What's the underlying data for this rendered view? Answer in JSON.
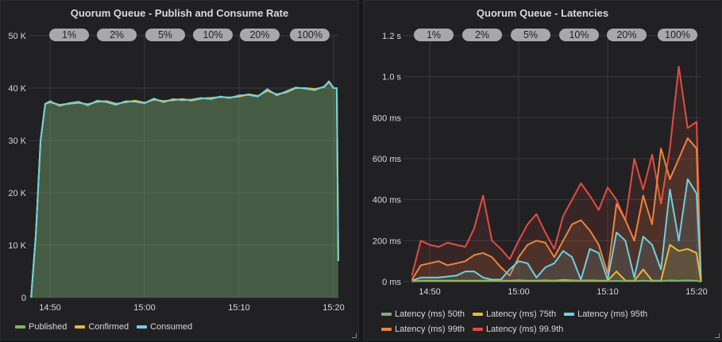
{
  "chart_data": [
    {
      "type": "area",
      "title": "Quorum Queue - Publish and Consume Rate",
      "y_ticks": [
        "0",
        "10 K",
        "20 K",
        "30 K",
        "40 K",
        "50 K"
      ],
      "ylim": [
        0,
        50000
      ],
      "x_ticks": [
        "14:50",
        "15:00",
        "15:10",
        "15:20"
      ],
      "xlim": [
        "14:48:00",
        "15:20:40"
      ],
      "grid": true,
      "legend_placement": "bottom",
      "annotations": [
        "1%",
        "2%",
        "5%",
        "10%",
        "20%",
        "100%"
      ],
      "x": [
        "14:48:00",
        "14:48:30",
        "14:49:00",
        "14:49:30",
        "14:50:00",
        "14:51:00",
        "14:52:00",
        "14:53:00",
        "14:54:00",
        "14:55:00",
        "14:56:00",
        "14:57:00",
        "14:58:00",
        "14:59:00",
        "15:00:00",
        "15:01:00",
        "15:02:00",
        "15:03:00",
        "15:04:00",
        "15:05:00",
        "15:06:00",
        "15:07:00",
        "15:08:00",
        "15:09:00",
        "15:10:00",
        "15:11:00",
        "15:12:00",
        "15:13:00",
        "15:14:00",
        "15:15:00",
        "15:16:00",
        "15:17:00",
        "15:18:00",
        "15:19:00",
        "15:19:30",
        "15:20:00",
        "15:20:20",
        "15:20:30"
      ],
      "series": [
        {
          "name": "Published",
          "color": "#7eb26d",
          "values": [
            0,
            12000,
            30000,
            37000,
            37300,
            36800,
            37000,
            37200,
            36900,
            37400,
            37500,
            37000,
            37300,
            37600,
            37200,
            37800,
            37500,
            37700,
            37900,
            37600,
            38000,
            38100,
            38300,
            38200,
            38400,
            38800,
            38500,
            39500,
            38800,
            39200,
            40000,
            40000,
            39800,
            40200,
            41200,
            40000,
            40000,
            7000
          ]
        },
        {
          "name": "Confirmed",
          "color": "#eab839",
          "values": [
            0,
            12000,
            30000,
            37000,
            37300,
            36800,
            37000,
            37200,
            36900,
            37400,
            37500,
            37000,
            37300,
            37600,
            37200,
            37800,
            37500,
            37700,
            37900,
            37600,
            38000,
            38100,
            38300,
            38200,
            38400,
            38800,
            38500,
            39500,
            38800,
            39200,
            40000,
            40000,
            39800,
            40200,
            41200,
            40000,
            40000,
            7000
          ]
        },
        {
          "name": "Consumed",
          "color": "#6ed0e0",
          "values": [
            0,
            12000,
            30000,
            37000,
            37500,
            36600,
            37100,
            37400,
            36700,
            37600,
            37300,
            36800,
            37500,
            37400,
            37100,
            38000,
            37300,
            37900,
            37700,
            37800,
            38100,
            37900,
            38400,
            38100,
            38600,
            38700,
            38400,
            39800,
            38600,
            39400,
            40100,
            39900,
            39600,
            40300,
            41300,
            40000,
            40000,
            7000
          ]
        }
      ]
    },
    {
      "type": "area",
      "title": "Quorum Queue - Latencies",
      "y_ticks": [
        "0 ms",
        "200 ms",
        "400 ms",
        "600 ms",
        "800 ms",
        "1.0 s",
        "1.2 s"
      ],
      "ylim": [
        0,
        1200
      ],
      "y_unit": "ms",
      "x_ticks": [
        "14:50",
        "15:00",
        "15:10",
        "15:20"
      ],
      "xlim": [
        "14:48:00",
        "15:20:40"
      ],
      "grid": true,
      "legend_placement": "bottom",
      "annotations": [
        "1%",
        "2%",
        "5%",
        "10%",
        "20%",
        "100%"
      ],
      "x": [
        "14:48",
        "14:49",
        "14:50",
        "14:51",
        "14:52",
        "14:53",
        "14:54",
        "14:55",
        "14:56",
        "14:57",
        "14:58",
        "14:59",
        "15:00",
        "15:01",
        "15:02",
        "15:03",
        "15:04",
        "15:05",
        "15:06",
        "15:07",
        "15:08",
        "15:09",
        "15:10",
        "15:11",
        "15:12",
        "15:13",
        "15:14",
        "15:15",
        "15:16",
        "15:17",
        "15:18",
        "15:19",
        "15:20",
        "15:20:30"
      ],
      "series": [
        {
          "name": "Latency (ms) 99.9th",
          "color": "#e24d42",
          "values": [
            30,
            200,
            180,
            170,
            190,
            180,
            170,
            260,
            420,
            200,
            160,
            110,
            200,
            280,
            330,
            240,
            160,
            320,
            400,
            480,
            420,
            350,
            460,
            400,
            300,
            600,
            450,
            620,
            380,
            650,
            1050,
            750,
            780,
            0
          ]
        },
        {
          "name": "Latency (ms) 99th",
          "color": "#ef843c",
          "values": [
            10,
            80,
            90,
            100,
            80,
            90,
            100,
            130,
            140,
            120,
            70,
            30,
            120,
            180,
            200,
            190,
            120,
            200,
            280,
            300,
            250,
            180,
            40,
            380,
            300,
            200,
            420,
            280,
            650,
            500,
            600,
            700,
            650,
            0
          ]
        },
        {
          "name": "Latency (ms) 95th",
          "color": "#6ed0e0",
          "values": [
            5,
            20,
            20,
            20,
            25,
            30,
            50,
            50,
            20,
            10,
            10,
            60,
            100,
            90,
            20,
            70,
            90,
            150,
            120,
            10,
            160,
            140,
            10,
            240,
            200,
            20,
            220,
            180,
            60,
            450,
            200,
            500,
            430,
            0
          ]
        },
        {
          "name": "Latency (ms) 75th",
          "color": "#eab839",
          "values": [
            3,
            5,
            5,
            5,
            5,
            5,
            5,
            5,
            5,
            5,
            5,
            5,
            6,
            5,
            5,
            6,
            5,
            8,
            6,
            5,
            6,
            5,
            5,
            50,
            5,
            5,
            60,
            5,
            5,
            180,
            150,
            160,
            140,
            0
          ]
        },
        {
          "name": "Latency (ms) 50th",
          "color": "#7eb26d",
          "values": [
            2,
            3,
            3,
            3,
            3,
            3,
            3,
            3,
            3,
            3,
            3,
            3,
            3,
            3,
            3,
            3,
            3,
            3,
            3,
            3,
            3,
            3,
            3,
            4,
            3,
            3,
            5,
            3,
            3,
            6,
            5,
            6,
            5,
            0
          ]
        }
      ]
    }
  ]
}
